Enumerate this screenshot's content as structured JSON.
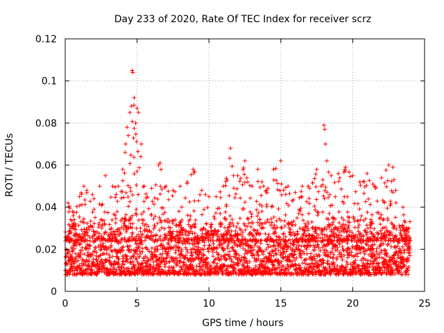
{
  "chart_data": {
    "type": "scatter",
    "title": "Day 233 of 2020, Rate Of TEC Index for receiver scrz",
    "xlabel": "GPS time / hours",
    "ylabel": "ROTI / TECUs",
    "xlim": [
      0,
      25
    ],
    "ylim": [
      0,
      0.12
    ],
    "xticks": [
      "0",
      "5",
      "10",
      "15",
      "20",
      "25"
    ],
    "yticks": [
      "0",
      "0.02",
      "0.04",
      "0.06",
      "0.08",
      "0.1",
      "0.12"
    ],
    "grid": true,
    "marker": "plus",
    "color": "#ff0000",
    "series": [
      {
        "x_range": [
          0,
          24
        ],
        "baseline_y_range": [
          0.008,
          0.03
        ],
        "points": [
          [
            0.2,
            0.042
          ],
          [
            0.5,
            0.038
          ],
          [
            1.0,
            0.045
          ],
          [
            1.3,
            0.05
          ],
          [
            1.5,
            0.048
          ],
          [
            1.9,
            0.046
          ],
          [
            2.0,
            0.044
          ],
          [
            2.4,
            0.05
          ],
          [
            2.8,
            0.055
          ],
          [
            3.3,
            0.05
          ],
          [
            3.7,
            0.05
          ],
          [
            4.0,
            0.058
          ],
          [
            4.2,
            0.07
          ],
          [
            4.3,
            0.078
          ],
          [
            4.5,
            0.085
          ],
          [
            4.6,
            0.088
          ],
          [
            4.65,
            0.105
          ],
          [
            4.7,
            0.104
          ],
          [
            4.8,
            0.092
          ],
          [
            4.9,
            0.08
          ],
          [
            5.0,
            0.087
          ],
          [
            5.1,
            0.085
          ],
          [
            5.3,
            0.07
          ],
          [
            5.5,
            0.05
          ],
          [
            6.0,
            0.049
          ],
          [
            6.5,
            0.06
          ],
          [
            6.6,
            0.061
          ],
          [
            7.0,
            0.05
          ],
          [
            7.5,
            0.048
          ],
          [
            8.0,
            0.05
          ],
          [
            8.5,
            0.052
          ],
          [
            8.9,
            0.058
          ],
          [
            9.0,
            0.057
          ],
          [
            9.5,
            0.048
          ],
          [
            10.0,
            0.045
          ],
          [
            10.5,
            0.045
          ],
          [
            11.0,
            0.05
          ],
          [
            11.5,
            0.068
          ],
          [
            11.7,
            0.055
          ],
          [
            12.0,
            0.055
          ],
          [
            12.5,
            0.062
          ],
          [
            12.7,
            0.052
          ],
          [
            13.0,
            0.05
          ],
          [
            13.4,
            0.058
          ],
          [
            13.8,
            0.05
          ],
          [
            14.0,
            0.048
          ],
          [
            14.5,
            0.058
          ],
          [
            15.0,
            0.062
          ],
          [
            15.5,
            0.05
          ],
          [
            16.0,
            0.047
          ],
          [
            16.5,
            0.05
          ],
          [
            16.9,
            0.05
          ],
          [
            17.0,
            0.049
          ],
          [
            17.5,
            0.058
          ],
          [
            17.8,
            0.05
          ],
          [
            18.0,
            0.079
          ],
          [
            18.05,
            0.077
          ],
          [
            18.1,
            0.07
          ],
          [
            18.2,
            0.062
          ],
          [
            18.5,
            0.055
          ],
          [
            19.0,
            0.056
          ],
          [
            19.5,
            0.059
          ],
          [
            20.0,
            0.055
          ],
          [
            20.5,
            0.052
          ],
          [
            21.0,
            0.056
          ],
          [
            21.5,
            0.05
          ],
          [
            22.0,
            0.054
          ],
          [
            22.5,
            0.06
          ],
          [
            22.8,
            0.059
          ],
          [
            23.0,
            0.048
          ],
          [
            23.5,
            0.04
          ],
          [
            23.9,
            0.03
          ]
        ]
      }
    ]
  }
}
